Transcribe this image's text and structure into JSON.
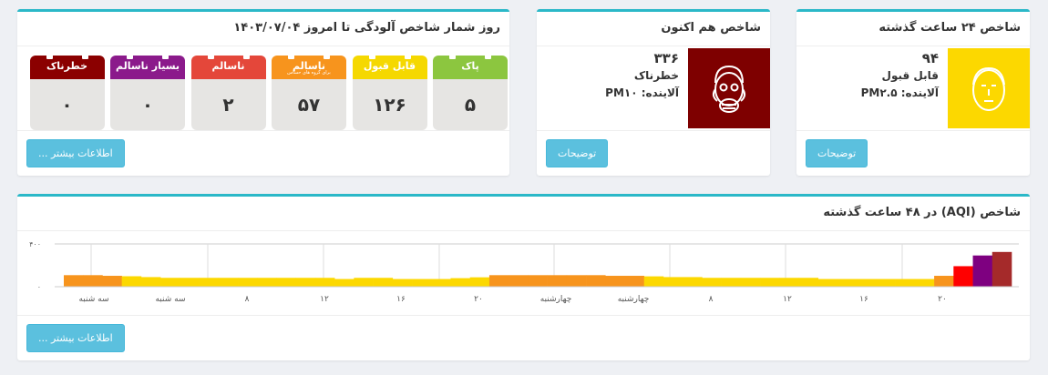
{
  "card_24h": {
    "title": "شاخص ۲۴ ساعت گذشته",
    "value": "۹۴",
    "status": "قابل قبول",
    "pollutant": "آلاینده: PM۲.۵",
    "color": "#fcd800",
    "button": "توضیحات"
  },
  "card_now": {
    "title": "شاخص هم اکنون",
    "value": "۳۳۶",
    "status": "خطرناک",
    "pollutant": "آلاینده: PM۱۰",
    "color": "#7e0000",
    "button": "توضیحات"
  },
  "card_days": {
    "title": "روز شمار شاخص آلودگی تا امروز ۱۴۰۳/۰۷/۰۴",
    "button": "اطلاعات بیشتر ...",
    "categories": [
      {
        "label": "پاک",
        "sub": "",
        "count": "۵",
        "color": "#8cc63f"
      },
      {
        "label": "قابل قبول",
        "sub": "",
        "count": "۱۲۶",
        "color": "#f5d800"
      },
      {
        "label": "ناسالم",
        "sub": "برای گروه های حساس",
        "count": "۵۷",
        "color": "#f7941d"
      },
      {
        "label": "ناسالم",
        "sub": "",
        "count": "۲",
        "color": "#e4473a"
      },
      {
        "label": "بسیار ناسالم",
        "sub": "",
        "count": "۰",
        "color": "#8b1a8b"
      },
      {
        "label": "خطرناک",
        "sub": "",
        "count": "۰",
        "color": "#8b0000"
      }
    ]
  },
  "card_chart": {
    "title": "شاخص (AQI) در ۴۸ ساعت گذشته",
    "button": "اطلاعات بیشتر ..."
  },
  "chart_data": {
    "type": "bar",
    "ylim": [
      0,
      400
    ],
    "y_ticks": [
      "۰",
      "۴۰۰"
    ],
    "x_tick_labels": [
      "سه شنبه",
      "سه شنبه",
      "۸",
      "۱۲",
      "۱۶",
      "۲۰",
      "چهارشنبه",
      "چهارشنبه",
      "۸",
      "۱۲",
      "۱۶",
      "۲۰"
    ],
    "values": [
      108,
      108,
      102,
      98,
      90,
      83,
      83,
      83,
      83,
      83,
      83,
      83,
      83,
      83,
      72,
      83,
      83,
      72,
      72,
      72,
      80,
      88,
      108,
      108,
      108,
      108,
      108,
      108,
      102,
      102,
      97,
      90,
      90,
      83,
      83,
      83,
      83,
      83,
      83,
      72,
      72,
      72,
      72,
      72,
      72,
      102,
      192,
      292,
      325
    ],
    "color_scale": {
      "0-50": "#8cc63f",
      "51-100": "#fcd800",
      "101-150": "#f7941d",
      "151-200": "#ff0000",
      "201-300": "#7e0080",
      "301+": "#a52a2a"
    },
    "grid": true
  }
}
